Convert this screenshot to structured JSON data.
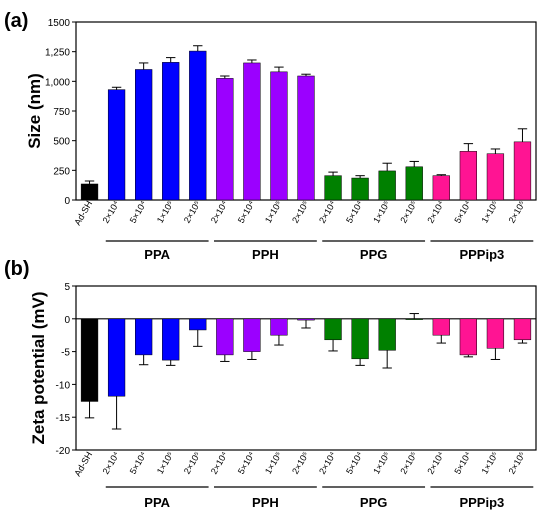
{
  "chart_data": [
    {
      "type": "bar",
      "panel_label": "(a)",
      "ylabel": "Size (nm)",
      "ylim": [
        0,
        1500
      ],
      "yticks": [
        0,
        250,
        500,
        750,
        "1,000",
        "1,250",
        1500
      ],
      "categories": [
        "Ad-SH",
        "2×10⁴",
        "5×10⁴",
        "1×10⁵",
        "2×10⁵",
        "2×10⁴",
        "5×10⁴",
        "1×10⁵",
        "2×10⁵",
        "2×10⁴",
        "5×10⁴",
        "1×10⁵",
        "2×10⁵",
        "2×10⁴",
        "5×10⁴",
        "1×10⁵",
        "2×10⁵"
      ],
      "values": [
        135,
        930,
        1100,
        1160,
        1255,
        1025,
        1155,
        1080,
        1045,
        205,
        185,
        245,
        280,
        205,
        410,
        390,
        490
      ],
      "errors": [
        25,
        20,
        55,
        40,
        45,
        20,
        25,
        40,
        15,
        30,
        20,
        65,
        45,
        8,
        65,
        40,
        110
      ],
      "groups": [
        {
          "name": "PPA",
          "start": 1,
          "end": 4
        },
        {
          "name": "PPH",
          "start": 5,
          "end": 8
        },
        {
          "name": "PPG",
          "start": 9,
          "end": 12
        },
        {
          "name": "PPPip3",
          "start": 13,
          "end": 16
        }
      ],
      "colors": [
        "#000000",
        "#0000ff",
        "#0000ff",
        "#0000ff",
        "#0000ff",
        "#9b00ff",
        "#9b00ff",
        "#9b00ff",
        "#9b00ff",
        "#008000",
        "#008000",
        "#008000",
        "#008000",
        "#ff1493",
        "#ff1493",
        "#ff1493",
        "#ff1493"
      ],
      "grid": false
    },
    {
      "type": "bar",
      "panel_label": "(b)",
      "ylabel": "Zeta potential (mV)",
      "ylim": [
        -20,
        5
      ],
      "yticks": [
        5,
        0,
        -5,
        -10,
        -15,
        -20
      ],
      "categories": [
        "Ad-SH",
        "2×10⁴",
        "5×10⁴",
        "1×10⁵",
        "2×10⁵",
        "2×10⁴",
        "5×10⁴",
        "1×10⁵",
        "2×10⁵",
        "2×10⁴",
        "5×10⁴",
        "1×10⁵",
        "2×10⁵",
        "2×10⁴",
        "5×10⁴",
        "1×10⁵",
        "2×10⁵"
      ],
      "values": [
        -12.6,
        -11.8,
        -5.5,
        -6.3,
        -1.7,
        -5.5,
        -5.0,
        -2.5,
        -0.2,
        -3.2,
        -6.1,
        -4.8,
        0.0,
        -2.5,
        -5.5,
        -4.5,
        -3.2
      ],
      "errors": [
        2.5,
        5.0,
        1.5,
        0.8,
        2.5,
        1.0,
        1.2,
        1.5,
        1.2,
        1.7,
        1.0,
        2.7,
        0.8,
        1.2,
        0.3,
        1.7,
        0.5
      ],
      "groups": [
        {
          "name": "PPA",
          "start": 1,
          "end": 4
        },
        {
          "name": "PPH",
          "start": 5,
          "end": 8
        },
        {
          "name": "PPG",
          "start": 9,
          "end": 12
        },
        {
          "name": "PPPip3",
          "start": 13,
          "end": 16
        }
      ],
      "colors": [
        "#000000",
        "#0000ff",
        "#0000ff",
        "#0000ff",
        "#0000ff",
        "#9b00ff",
        "#9b00ff",
        "#9b00ff",
        "#9b00ff",
        "#008000",
        "#008000",
        "#008000",
        "#008000",
        "#ff1493",
        "#ff1493",
        "#ff1493",
        "#ff1493"
      ],
      "grid": false
    }
  ]
}
